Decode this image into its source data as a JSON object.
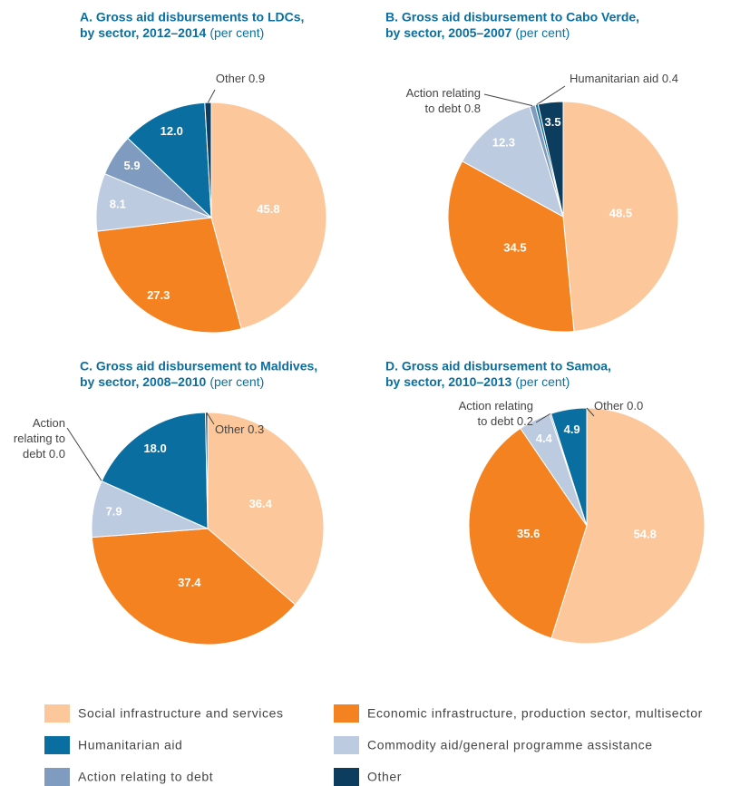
{
  "chart_data": [
    {
      "type": "pie",
      "title": [
        "A. Gross aid disbursements to LDCs,",
        "by sector, 2012–2014"
      ],
      "unit": "(per cent)",
      "values": [
        45.8,
        27.3,
        8.1,
        5.9,
        12.0,
        0.9
      ],
      "value_labels": [
        "45.8",
        "27.3",
        "8.1",
        "5.9",
        "12.0",
        "Other 0.9"
      ]
    },
    {
      "type": "pie",
      "title": [
        "B. Gross aid disbursement to Cabo Verde,",
        "by sector, 2005–2007"
      ],
      "unit": "(per cent)",
      "values": [
        48.5,
        34.5,
        12.3,
        0.8,
        0.4,
        3.5
      ],
      "value_labels": [
        "48.5",
        "34.5",
        "12.3",
        "Action relating\nto debt 0.8",
        "Humanitarian aid 0.4",
        "3.5"
      ]
    },
    {
      "type": "pie",
      "title": [
        "C. Gross aid disbursement to Maldives,",
        "by sector, 2008–2010"
      ],
      "unit": "(per cent)",
      "values": [
        36.4,
        37.4,
        7.9,
        0.0,
        18.0,
        0.3
      ],
      "value_labels": [
        "36.4",
        "37.4",
        "7.9",
        "Action\nrelating to\ndebt 0.0",
        "18.0",
        "Other 0.3"
      ]
    },
    {
      "type": "pie",
      "title": [
        "D. Gross aid disbursement to Samoa,",
        "by sector, 2010–2013"
      ],
      "unit": "(per cent)",
      "values": [
        54.8,
        35.6,
        4.4,
        0.2,
        4.9,
        0.0
      ],
      "value_labels": [
        "54.8",
        "35.6",
        "4.4",
        "Action relating\nto debt 0.2",
        "4.9",
        "Other 0.0"
      ]
    }
  ],
  "legend": {
    "series": [
      {
        "name": "Social infrastructure and services",
        "color": "#fcc89b"
      },
      {
        "name": "Economic infrastructure, production sector, multisector",
        "color": "#f58220"
      },
      {
        "name": "Commodity aid/general programme assistance",
        "color": "#bccbe0"
      },
      {
        "name": "Action relating to debt",
        "color": "#7f9cc0"
      },
      {
        "name": "Humanitarian aid",
        "color": "#0a6fa0"
      },
      {
        "name": "Other",
        "color": "#0d3d5e"
      }
    ]
  }
}
